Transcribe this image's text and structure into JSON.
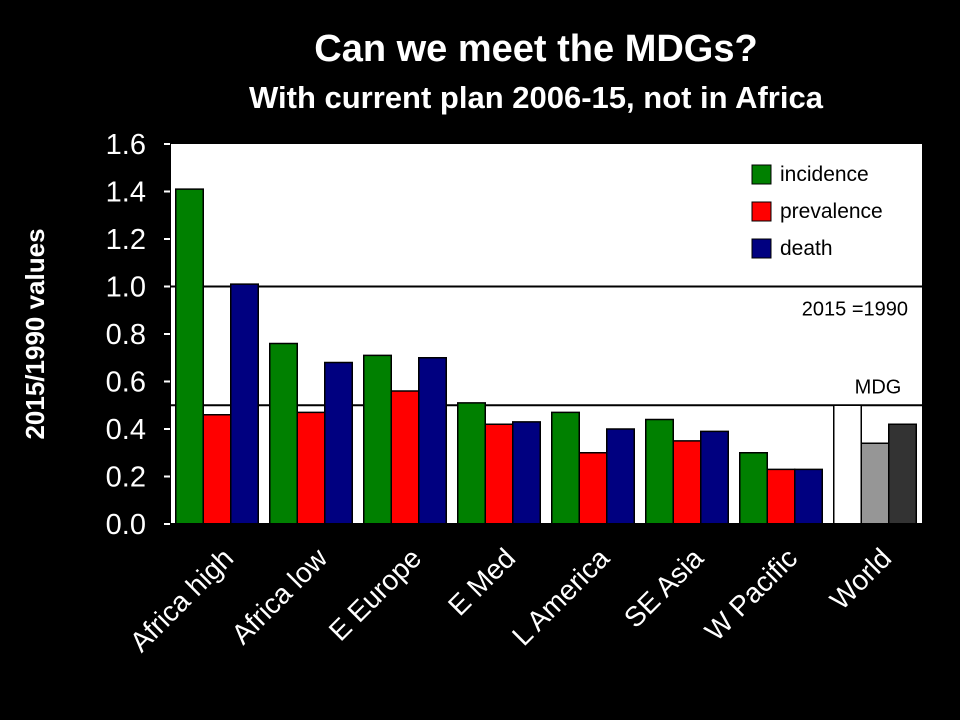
{
  "slide": {
    "title": "Can we meet the MDGs?",
    "subtitle": "With current plan 2006-15, not in Africa"
  },
  "chart_data": {
    "type": "bar",
    "ylabel": "2015/1990 values",
    "xlabel": "",
    "ylim": [
      0,
      1.6
    ],
    "yticks": [
      "0.0",
      "0.2",
      "0.4",
      "0.6",
      "0.8",
      "1.0",
      "1.2",
      "1.4",
      "1.6"
    ],
    "grid": false,
    "legend_position": "top-right",
    "categories": [
      "Africa high",
      "Africa low",
      "E Europe",
      "E Med",
      "L America",
      "SE Asia",
      "W Pacific",
      "World"
    ],
    "series": [
      {
        "name": "incidence",
        "color": "#008000",
        "values": [
          1.41,
          0.76,
          0.71,
          0.51,
          0.47,
          0.44,
          0.3,
          0.5
        ]
      },
      {
        "name": "prevalence",
        "color": "#ff0000",
        "values": [
          0.46,
          0.47,
          0.56,
          0.42,
          0.3,
          0.35,
          0.23,
          0.34
        ]
      },
      {
        "name": "death",
        "color": "#000080",
        "values": [
          1.01,
          0.68,
          0.7,
          0.43,
          0.4,
          0.39,
          0.23,
          0.42
        ]
      }
    ],
    "world_colors": [
      "#ffffff",
      "#969696",
      "#333333"
    ],
    "reference_lines": [
      {
        "value": 1.0,
        "label": "2015 =1990"
      },
      {
        "value": 0.5,
        "label": "MDG"
      }
    ]
  }
}
